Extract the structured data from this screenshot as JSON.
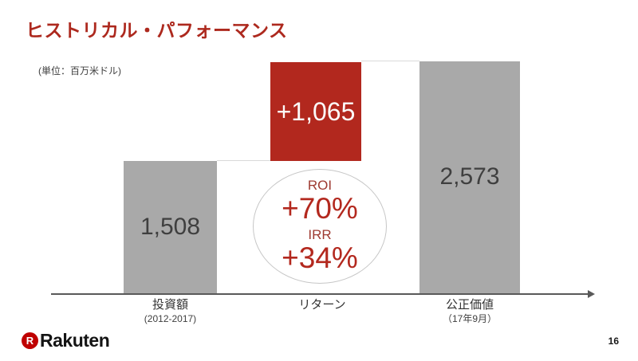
{
  "slide": {
    "title": "ヒストリカル・パフォーマンス",
    "unit_note": "(単位：百万米ドル)",
    "page_number": "16"
  },
  "logo": {
    "r_mark": "R",
    "wordmark": "Rakuten",
    "brand_color": "#BF0000"
  },
  "chart_data": {
    "type": "bar",
    "subtype": "waterfall",
    "title": "ヒストリカル・パフォーマンス",
    "unit_label": "(単位：百万米ドル)",
    "categories": [
      "投資額",
      "リターン",
      "公正価値"
    ],
    "category_sublabels": [
      "(2012-2017)",
      "",
      "（17年9月）"
    ],
    "values": [
      1508,
      1065,
      2573
    ],
    "value_labels": [
      "1,508",
      "+1,065",
      "2,573"
    ],
    "bar_colors": [
      "#A9A9A9",
      "#B2281E",
      "#A9A9A9"
    ],
    "annotations": [
      {
        "label": "ROI",
        "value": "+70%"
      },
      {
        "label": "IRR",
        "value": "+34%"
      }
    ],
    "legend": "none",
    "grid": false,
    "axis_color": "#595959",
    "notes": "リターン bar (+1,065) is stacked visually on top of 投資額 level; 投資額 + リターン = 公正価値 (1,508 + 1,065 = 2,573). ROI/IRR shown in ellipse annotation under the return bar."
  },
  "colors": {
    "accent_red": "#B3281E",
    "bar_gray": "#A9A9A9",
    "bar_red": "#B2281E",
    "text_dark": "#3F3F3F",
    "connector_gray": "#D9D9D9"
  }
}
